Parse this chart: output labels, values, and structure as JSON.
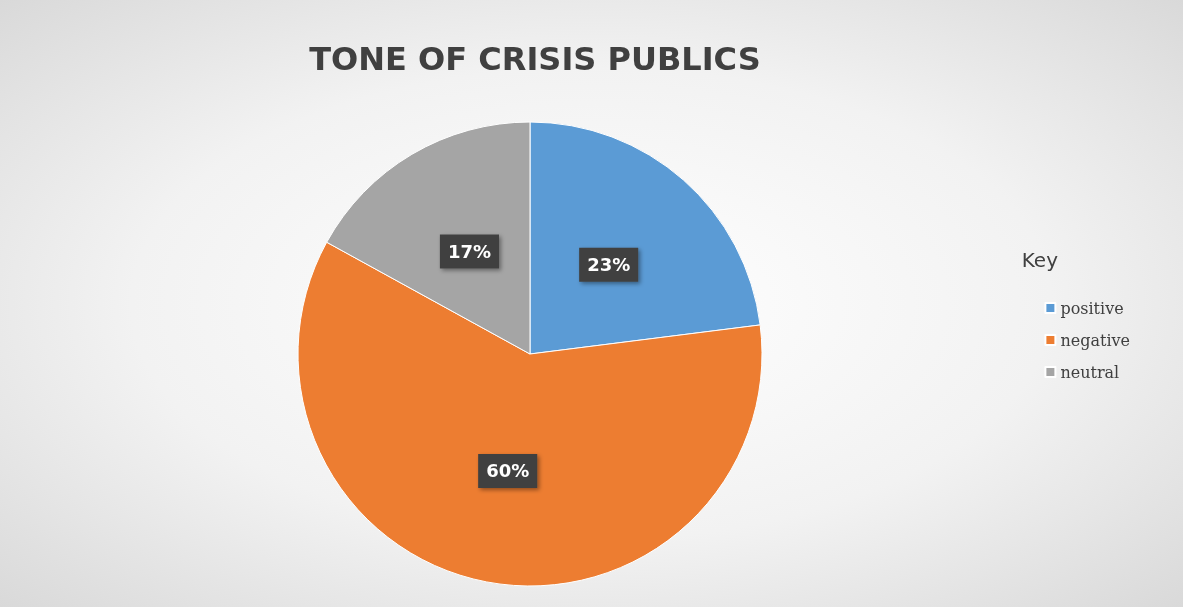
{
  "chart_data": {
    "type": "pie",
    "title": "TONE OF CRISIS PUBLICS",
    "legend_title": "Key",
    "legend": "right",
    "categories": [
      "positive",
      "negative",
      "neutral"
    ],
    "values": [
      23,
      60,
      17
    ],
    "colors": [
      "#5b9bd5",
      "#ed7d31",
      "#a5a5a5"
    ],
    "value_labels": [
      "23%",
      "60%",
      "17%"
    ]
  }
}
